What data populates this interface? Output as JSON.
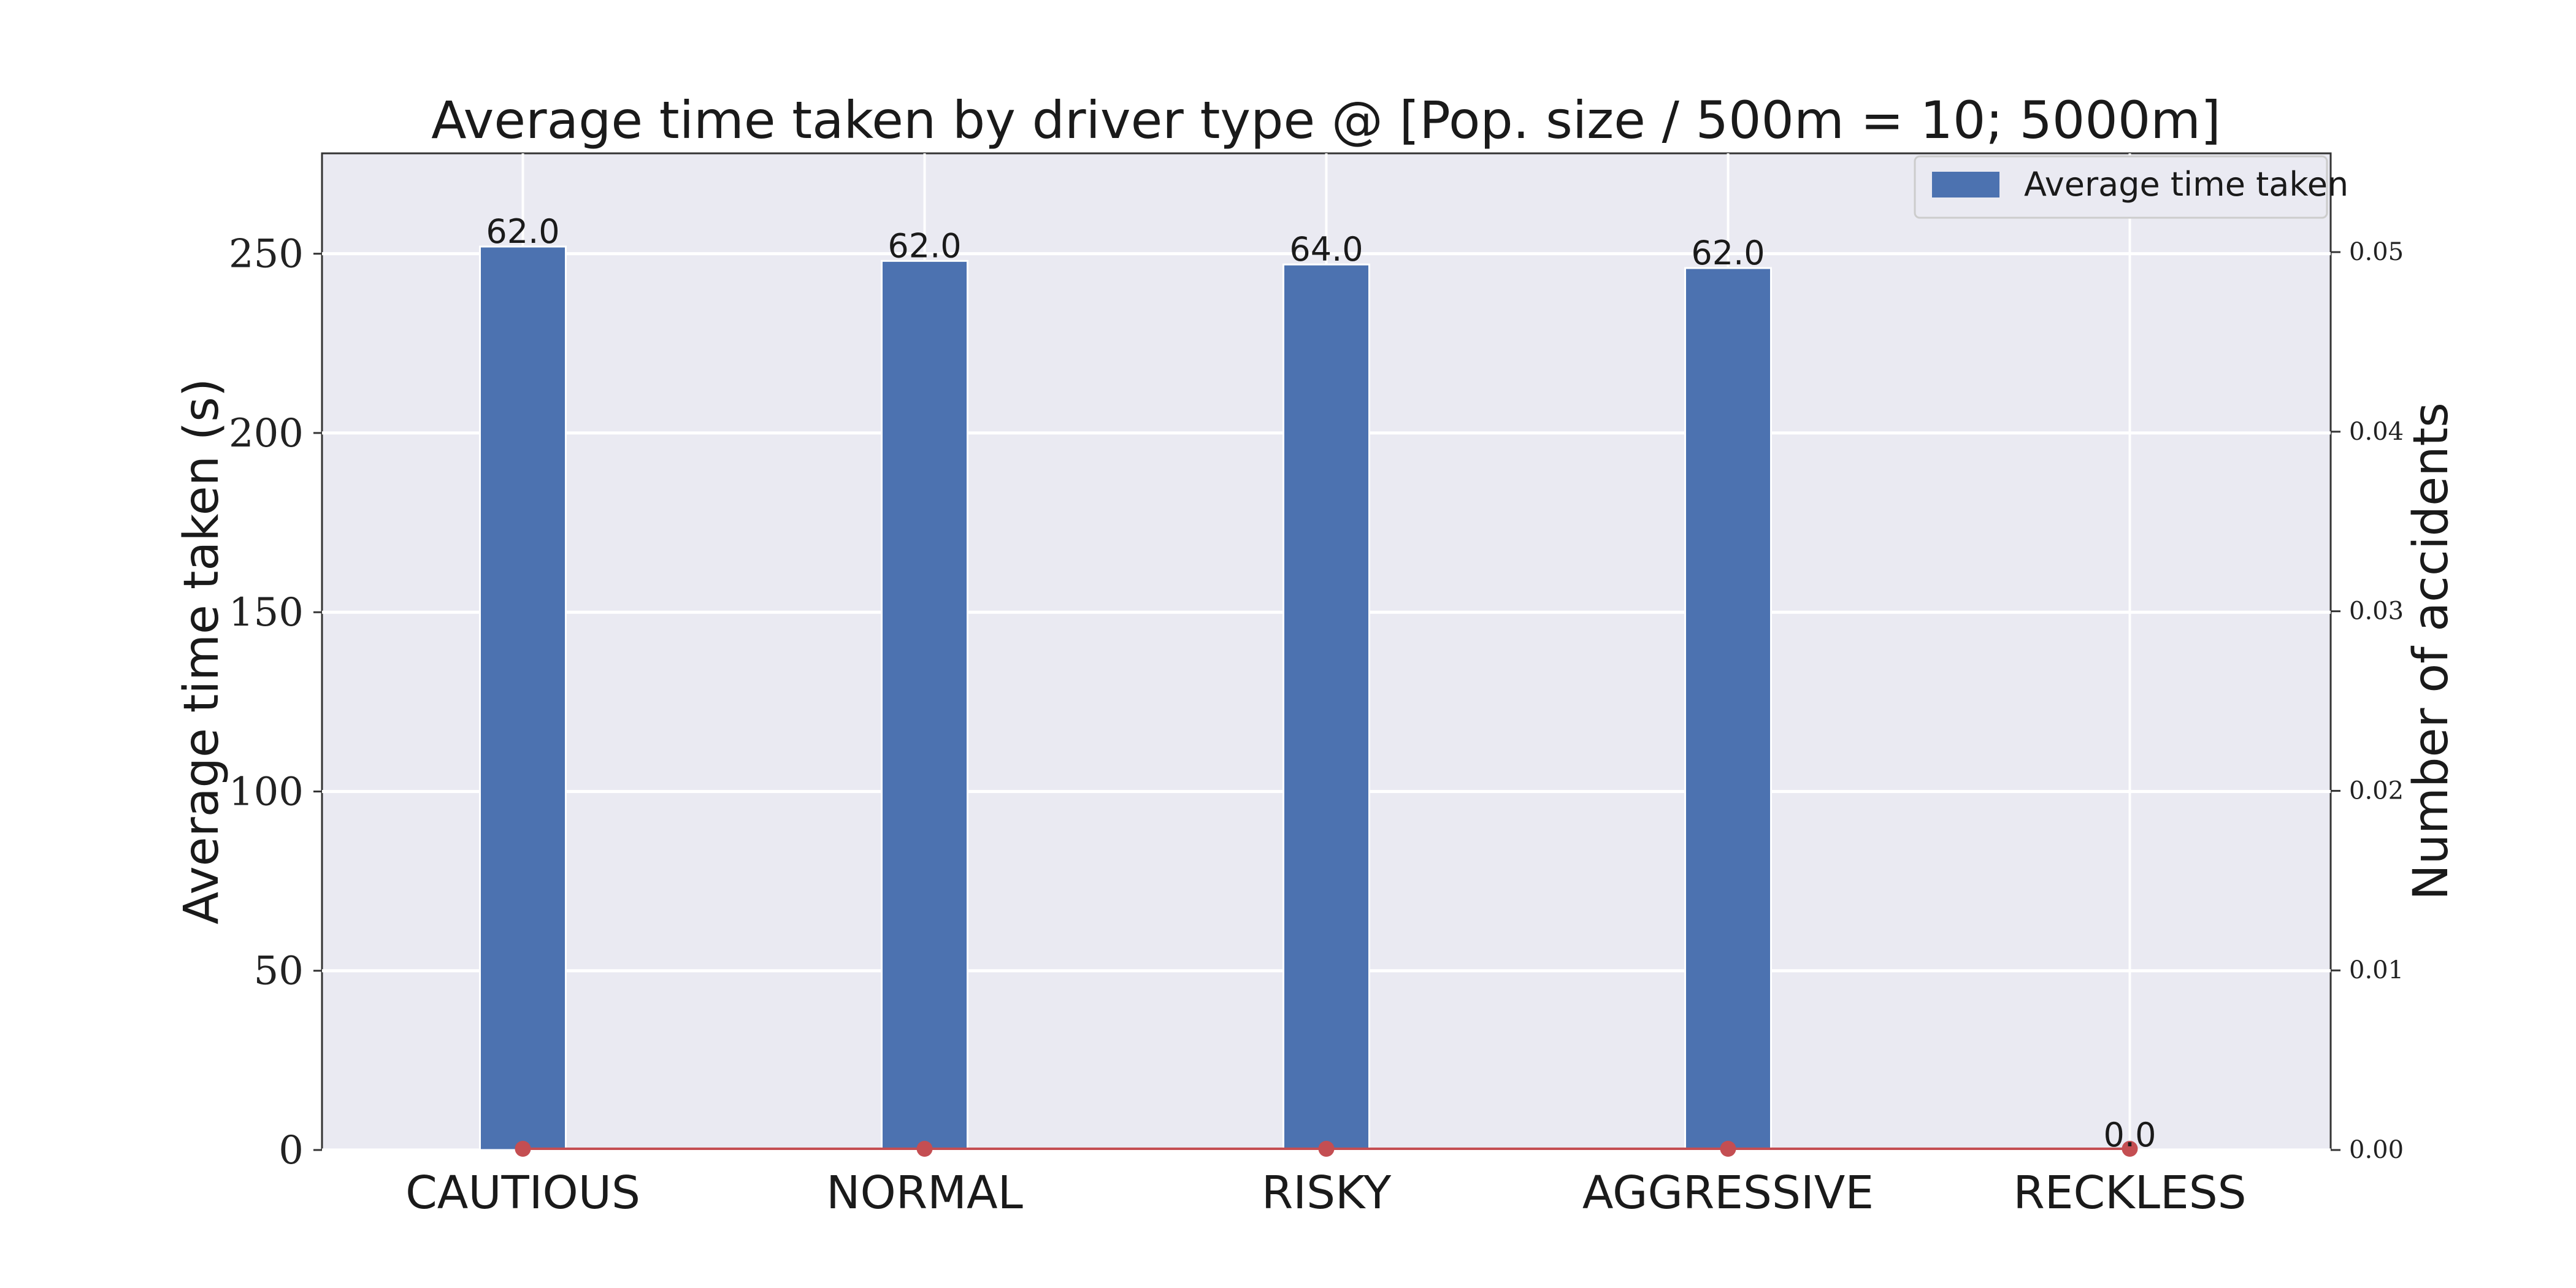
{
  "chart_data": {
    "type": "bar",
    "title": "Average time taken by driver type @ [Pop. size / 500m = 10; 5000m]",
    "xlabel": "",
    "ylabel": "Average time taken (s)",
    "y2label": "Number of accidents",
    "categories": [
      "CAUTIOUS",
      "NORMAL",
      "RISKY",
      "AGGRESSIVE",
      "RECKLESS"
    ],
    "series": [
      {
        "name": "Average time taken",
        "axis": "left",
        "values": [
          252,
          248,
          247,
          246,
          0
        ],
        "data_labels": [
          "62.0",
          "62.0",
          "64.0",
          "62.0",
          "0.0"
        ],
        "color": "#4c72b0"
      },
      {
        "axis": "right",
        "kind": "line-markers",
        "values": [
          0,
          0,
          0,
          0,
          0
        ],
        "color": "#c44e52"
      }
    ],
    "ylim": [
      0,
      278
    ],
    "yticks": [
      0,
      50,
      100,
      150,
      200,
      250
    ],
    "y2lim": [
      0,
      0.0555
    ],
    "y2ticks": [
      "0.00",
      "0.01",
      "0.02",
      "0.03",
      "0.04",
      "0.05"
    ],
    "y2tick_values": [
      0,
      0.01,
      0.02,
      0.03,
      0.04,
      0.05
    ],
    "legend_position": "top-right",
    "grid": true,
    "background": "#eaeaf2"
  }
}
